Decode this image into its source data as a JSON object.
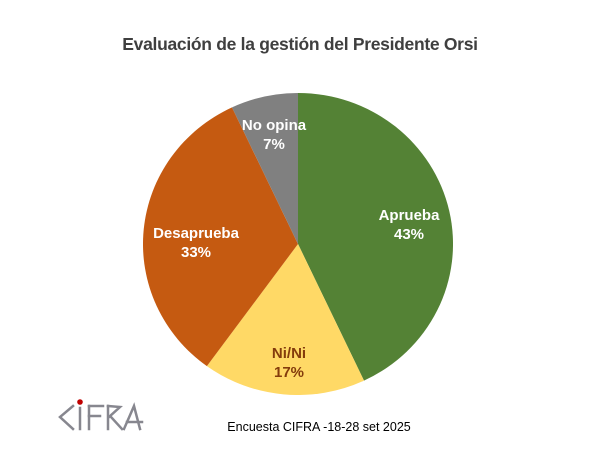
{
  "page": {
    "caption": "Encuesta CIFRA -18-28 set 2025",
    "background_color": "#FFFFFF",
    "title_color": "#3F3F3F"
  },
  "logo": {
    "name": "CIFRA",
    "letter_color": "#87878F",
    "dot_color": "#C00000"
  },
  "chart_data": {
    "type": "pie",
    "title": "Evaluación de la gestión del Presidente Orsi",
    "start_angle_deg": 0,
    "direction": "clockwise",
    "legend_position": "none",
    "labels_on_slices": true,
    "slices": [
      {
        "label": "Aprueba",
        "value": 43,
        "pct": "43%",
        "color": "#548235",
        "label_color": "#FFFFFF"
      },
      {
        "label": "Ni/Ni",
        "value": 17,
        "pct": "17%",
        "color": "#FFD966",
        "label_color": "#843C0C"
      },
      {
        "label": "Desaprueba",
        "value": 33,
        "pct": "33%",
        "color": "#C55A11",
        "label_color": "#FFFFFF"
      },
      {
        "label": "No opina",
        "value": 7,
        "pct": "7%",
        "color": "#808080",
        "label_color": "#FFFFFF"
      }
    ]
  }
}
